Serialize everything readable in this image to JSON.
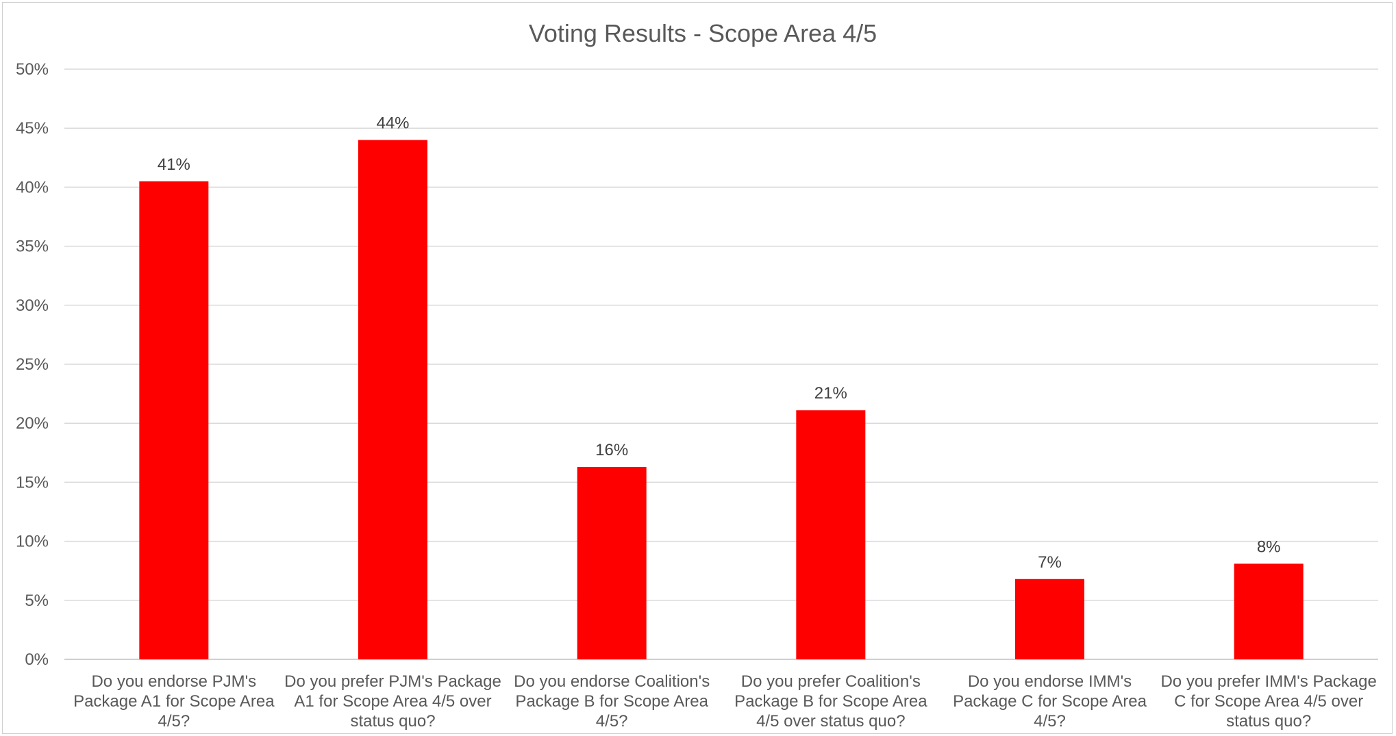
{
  "chart_data": {
    "type": "bar",
    "title": "Voting Results - Scope Area 4/5",
    "xlabel": "",
    "ylabel": "",
    "ylim": [
      0,
      0.5
    ],
    "ytick_step": 0.05,
    "yticks": [
      "0%",
      "5%",
      "10%",
      "15%",
      "20%",
      "25%",
      "30%",
      "35%",
      "40%",
      "45%",
      "50%"
    ],
    "grid": true,
    "legend": "none",
    "bar_color": "#ff0000",
    "categories": [
      [
        "Do you endorse PJM's",
        "Package A1 for Scope Area",
        "4/5?"
      ],
      [
        "Do you prefer PJM's Package",
        "A1 for Scope Area 4/5 over",
        "status quo?"
      ],
      [
        "Do you endorse Coalition's",
        "Package B for Scope Area",
        "4/5?"
      ],
      [
        "Do you prefer Coalition's",
        "Package B for Scope Area",
        "4/5 over status quo?"
      ],
      [
        "Do you endorse IMM's",
        "Package C for Scope Area",
        "4/5?"
      ],
      [
        "Do you prefer IMM's Package",
        "C for Scope Area 4/5 over",
        "status quo?"
      ]
    ],
    "values": [
      0.405,
      0.44,
      0.163,
      0.211,
      0.068,
      0.081
    ],
    "data_labels": [
      "41%",
      "44%",
      "16%",
      "21%",
      "7%",
      "8%"
    ]
  }
}
